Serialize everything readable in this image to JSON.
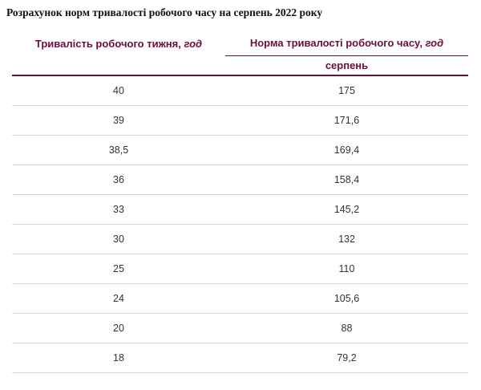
{
  "page": {
    "title": "Розрахунок норм тривалості робочого часу на серпень 2022 року"
  },
  "table": {
    "header": {
      "col1": "Тривалість робочого тижня,",
      "col1_unit": "год",
      "col2": "Норма тривалості робочого часу,",
      "col2_unit": "год",
      "sub": "серпень"
    },
    "rows": [
      {
        "week": "40",
        "norm": "175"
      },
      {
        "week": "39",
        "norm": "171,6"
      },
      {
        "week": "38,5",
        "norm": "169,4"
      },
      {
        "week": "36",
        "norm": "158,4"
      },
      {
        "week": "33",
        "norm": "145,2"
      },
      {
        "week": "30",
        "norm": "132"
      },
      {
        "week": "25",
        "norm": "110"
      },
      {
        "week": "24",
        "norm": "105,6"
      },
      {
        "week": "20",
        "norm": "88"
      },
      {
        "week": "18",
        "norm": "79,2"
      }
    ]
  },
  "colors": {
    "accent": "#6b0e3d",
    "row_divider": "#d9d9d9",
    "body_text": "#333333",
    "title_text": "#111111"
  }
}
